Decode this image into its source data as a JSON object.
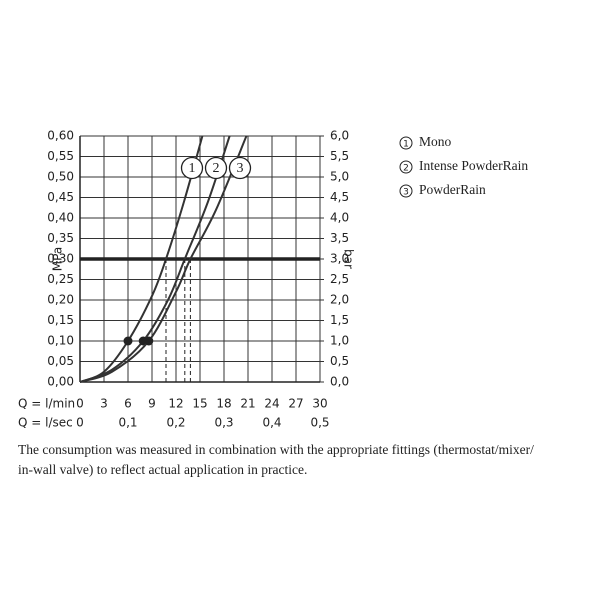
{
  "chart_data": {
    "type": "line",
    "y_label": "MPa",
    "y2_label": "bar",
    "x_label": "Q = l/min",
    "x2_label": "Q = l/sec",
    "note": [
      "The consumption was measured in combination with the appropriate fittings (thermostat/mixer/",
      "in-wall valve) to reflect actual application in practice."
    ],
    "xlim": [
      0,
      30
    ],
    "xticks": [
      0,
      3,
      6,
      9,
      12,
      15,
      18,
      21,
      24,
      27,
      30
    ],
    "x2lim": [
      0,
      0.5
    ],
    "x2ticks": [
      0,
      {
        "value": 0.1,
        "label": "0,1"
      },
      {
        "value": 0.2,
        "label": "0,2"
      },
      {
        "value": 0.3,
        "label": "0,3"
      },
      {
        "value": 0.4,
        "label": "0,4"
      },
      {
        "value": 0.5,
        "label": "0,5"
      }
    ],
    "ylim": [
      0,
      0.6
    ],
    "yticks": [
      {
        "value": 0,
        "label": "0,00"
      },
      {
        "value": 0.05,
        "label": "0,05"
      },
      {
        "value": 0.1,
        "label": "0,10"
      },
      {
        "value": 0.15,
        "label": "0,15"
      },
      {
        "value": 0.2,
        "label": "0,20"
      },
      {
        "value": 0.25,
        "label": "0,25"
      },
      {
        "value": 0.3,
        "label": "0,30"
      },
      {
        "value": 0.35,
        "label": "0,35"
      },
      {
        "value": 0.4,
        "label": "0,40"
      },
      {
        "value": 0.45,
        "label": "0,45"
      },
      {
        "value": 0.5,
        "label": "0,50"
      },
      {
        "value": 0.55,
        "label": "0,55"
      },
      {
        "value": 0.6,
        "label": "0,60"
      }
    ],
    "y2lim": [
      0,
      6
    ],
    "y2ticks": [
      {
        "value": 0,
        "label": "0,0"
      },
      {
        "value": 0.5,
        "label": "0,5"
      },
      {
        "value": 1,
        "label": "1,0"
      },
      {
        "value": 1.5,
        "label": "1,5"
      },
      {
        "value": 2,
        "label": "2,0"
      },
      {
        "value": 2.5,
        "label": "2,5"
      },
      {
        "value": 3,
        "label": "3,0"
      },
      {
        "value": 3.5,
        "label": "3,5"
      },
      {
        "value": 4,
        "label": "4,0"
      },
      {
        "value": 4.5,
        "label": "4,5"
      },
      {
        "value": 5,
        "label": "5,0"
      },
      {
        "value": 5.5,
        "label": "5,5"
      },
      {
        "value": 6,
        "label": "6,0"
      }
    ],
    "grid": true,
    "reference_pressure": 0.3,
    "marked_pressure": 0.1,
    "series": [
      {
        "name": "Mono",
        "label": "1",
        "color": "#333333",
        "x": [
          0,
          3,
          6,
          9,
          10.75,
          13,
          15.3
        ],
        "values": [
          0,
          0.025,
          0.1,
          0.21,
          0.3,
          0.44,
          0.6
        ]
      },
      {
        "name": "Intense PowderRain",
        "label": "2",
        "color": "#333333",
        "x": [
          0,
          4,
          7.9,
          11,
          13.1,
          16,
          18.7
        ],
        "values": [
          0,
          0.03,
          0.1,
          0.2,
          0.3,
          0.44,
          0.6
        ]
      },
      {
        "name": "PowderRain",
        "label": "3",
        "color": "#333333",
        "x": [
          0,
          4,
          8.6,
          12,
          13.8,
          17,
          20.8
        ],
        "values": [
          0,
          0.025,
          0.1,
          0.22,
          0.3,
          0.42,
          0.6
        ]
      }
    ]
  }
}
